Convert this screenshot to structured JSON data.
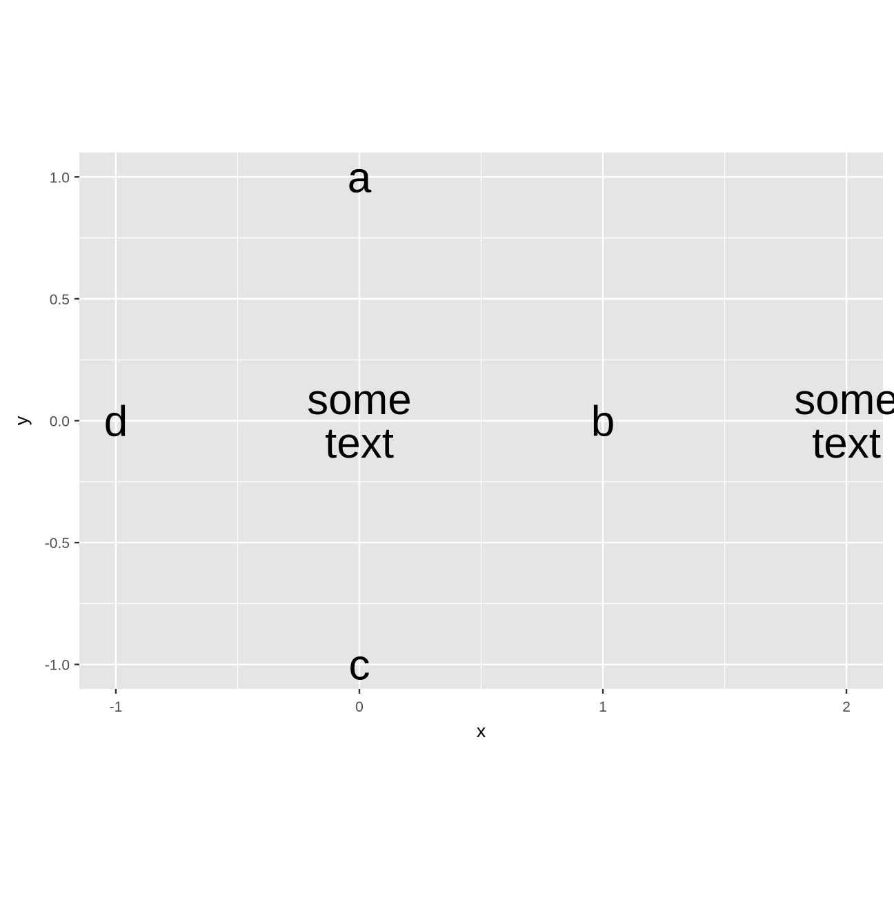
{
  "chart_data": {
    "type": "scatter",
    "geom": "text",
    "xlabel": "x",
    "ylabel": "y",
    "x_ticks": [
      -1,
      0,
      1,
      2
    ],
    "x_tick_labels": [
      "-1",
      "0",
      "1",
      "2"
    ],
    "y_ticks": [
      -1.0,
      -0.5,
      0.0,
      0.5,
      1.0
    ],
    "y_tick_labels": [
      "-1.0",
      "-0.5",
      "0.0",
      "0.5",
      "1.0"
    ],
    "xlim": [
      -1.15,
      2.15
    ],
    "ylim": [
      -1.1,
      1.1
    ],
    "grid": true,
    "points": [
      {
        "x": 0,
        "y": 1,
        "label": "a"
      },
      {
        "x": 1,
        "y": 0,
        "label": "b"
      },
      {
        "x": 0,
        "y": -1,
        "label": "c"
      },
      {
        "x": -1,
        "y": 0,
        "label": "d"
      },
      {
        "x": 0,
        "y": 0,
        "label": "some\ntext"
      },
      {
        "x": 2,
        "y": 0,
        "label": "some\ntext"
      }
    ],
    "colors": {
      "panel_background": "#e5e5e5",
      "grid": "#ffffff",
      "text": "#000000",
      "tick_text": "#4d4d4d",
      "tick_mark": "#333333"
    }
  }
}
